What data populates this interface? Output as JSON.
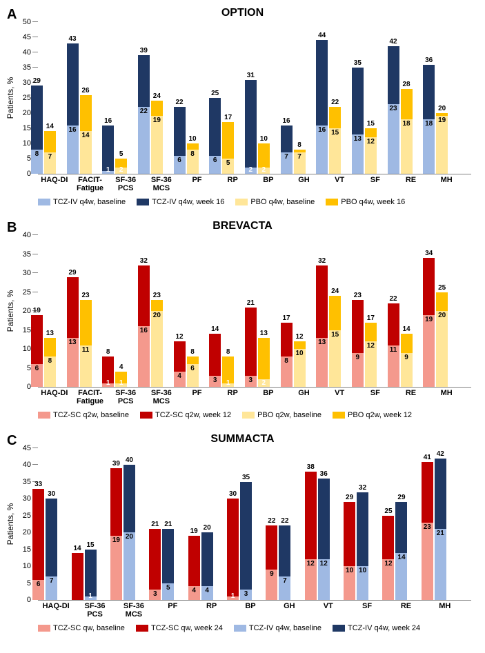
{
  "panels": [
    {
      "letter": "A",
      "title": "OPTION",
      "ylabel": "Patients, %",
      "ylim": [
        0,
        50
      ],
      "ytick_step": 5,
      "colors": {
        "s1_base": "#9fb9e3",
        "s1_week": "#1f3864",
        "s2_base": "#ffe699",
        "s2_week": "#ffc000"
      },
      "legend": [
        {
          "color": "#9fb9e3",
          "label": "TCZ-IV q4w, baseline"
        },
        {
          "color": "#1f3864",
          "label": "TCZ-IV q4w, week 16"
        },
        {
          "color": "#ffe699",
          "label": "PBO q4w, baseline"
        },
        {
          "color": "#ffc000",
          "label": "PBO q4w, week 16"
        }
      ],
      "categories": [
        {
          "name": "HAQ-DI",
          "s1b": 8,
          "s1w": 29,
          "s2b": 7,
          "s2w": 14
        },
        {
          "name": "FACIT-\nFatigue",
          "s1b": 16,
          "s1w": 43,
          "s2b": 14,
          "s2w": 26
        },
        {
          "name": "SF-36\nPCS",
          "s1b": 1,
          "s1w": 16,
          "s2b": 2,
          "s2w": 5
        },
        {
          "name": "SF-36\nMCS",
          "s1b": 22,
          "s1w": 39,
          "s2b": 19,
          "s2w": 24
        },
        {
          "name": "PF",
          "s1b": 6,
          "s1w": 22,
          "s2b": 8,
          "s2w": 10
        },
        {
          "name": "RP",
          "s1b": 6,
          "s1w": 25,
          "s2b": 5,
          "s2w": 17
        },
        {
          "name": "BP",
          "s1b": 2,
          "s1w": 31,
          "s2b": 2,
          "s2w": 10
        },
        {
          "name": "GH",
          "s1b": 7,
          "s1w": 16,
          "s2b": 7,
          "s2w": 8
        },
        {
          "name": "VT",
          "s1b": 16,
          "s1w": 44,
          "s2b": 15,
          "s2w": 22
        },
        {
          "name": "SF",
          "s1b": 13,
          "s1w": 35,
          "s2b": 12,
          "s2w": 15
        },
        {
          "name": "RE",
          "s1b": 23,
          "s1w": 42,
          "s2b": 18,
          "s2w": 28
        },
        {
          "name": "MH",
          "s1b": 18,
          "s1w": 36,
          "s2b": 19,
          "s2w": 20
        }
      ]
    },
    {
      "letter": "B",
      "title": "BREVACTA",
      "ylabel": "Patients, %",
      "ylim": [
        0,
        40
      ],
      "ytick_step": 5,
      "colors": {
        "s1_base": "#f4998d",
        "s1_week": "#c00000",
        "s2_base": "#ffe699",
        "s2_week": "#ffc000"
      },
      "legend": [
        {
          "color": "#f4998d",
          "label": "TCZ-SC q2w, baseline"
        },
        {
          "color": "#c00000",
          "label": "TCZ-SC q2w, week 12"
        },
        {
          "color": "#ffe699",
          "label": "PBO q2w, baseline"
        },
        {
          "color": "#ffc000",
          "label": "PBO q2w, week 12"
        }
      ],
      "categories": [
        {
          "name": "HAQ-DI",
          "s1b": 6,
          "s1w": 19,
          "s2b": 8,
          "s2w": 13
        },
        {
          "name": "FACIT-\nFatigue",
          "s1b": 13,
          "s1w": 29,
          "s2b": 11,
          "s2w": 23
        },
        {
          "name": "SF-36\nPCS",
          "s1b": 1,
          "s1w": 8,
          "s2b": 1,
          "s2w": 4
        },
        {
          "name": "SF-36\nMCS",
          "s1b": 16,
          "s1w": 32,
          "s2b": 20,
          "s2w": 23
        },
        {
          "name": "PF",
          "s1b": 4,
          "s1w": 12,
          "s2b": 6,
          "s2w": 8
        },
        {
          "name": "RP",
          "s1b": 3,
          "s1w": 14,
          "s2b": 1,
          "s2w": 8
        },
        {
          "name": "BP",
          "s1b": 3,
          "s1w": 21,
          "s2b": 2,
          "s2w": 13
        },
        {
          "name": "GH",
          "s1b": 8,
          "s1w": 17,
          "s2b": 10,
          "s2w": 12
        },
        {
          "name": "VT",
          "s1b": 13,
          "s1w": 32,
          "s2b": 15,
          "s2w": 24
        },
        {
          "name": "SF",
          "s1b": 9,
          "s1w": 23,
          "s2b": 12,
          "s2w": 17
        },
        {
          "name": "RE",
          "s1b": 11,
          "s1w": 22,
          "s2b": 9,
          "s2w": 14
        },
        {
          "name": "MH",
          "s1b": 19,
          "s1w": 34,
          "s2b": 20,
          "s2w": 25
        }
      ]
    },
    {
      "letter": "C",
      "title": "SUMMACTA",
      "ylabel": "Patients, %",
      "ylim": [
        0,
        45
      ],
      "ytick_step": 5,
      "colors": {
        "s1_base": "#f4998d",
        "s1_week": "#c00000",
        "s2_base": "#9fb9e3",
        "s2_week": "#1f3864"
      },
      "legend": [
        {
          "color": "#f4998d",
          "label": "TCZ-SC qw, baseline"
        },
        {
          "color": "#c00000",
          "label": "TCZ-SC qw, week 24"
        },
        {
          "color": "#9fb9e3",
          "label": "TCZ-IV q4w, baseline"
        },
        {
          "color": "#1f3864",
          "label": "TCZ-IV q4w, week 24"
        }
      ],
      "categories": [
        {
          "name": "HAQ-DI",
          "s1b": 6,
          "s1w": 33,
          "s2b": 7,
          "s2w": 30
        },
        {
          "name": "SF-36\nPCS",
          "s1b": 0,
          "s1w": 14,
          "s2b": 1,
          "s2w": 15
        },
        {
          "name": "SF-36\nMCS",
          "s1b": 19,
          "s1w": 39,
          "s2b": 20,
          "s2w": 40
        },
        {
          "name": "PF",
          "s1b": 3,
          "s1w": 21,
          "s2b": 5,
          "s2w": 21
        },
        {
          "name": "RP",
          "s1b": 4,
          "s1w": 19,
          "s2b": 4,
          "s2w": 20
        },
        {
          "name": "BP",
          "s1b": 1,
          "s1w": 30,
          "s2b": 3,
          "s2w": 35
        },
        {
          "name": "GH",
          "s1b": 9,
          "s1w": 22,
          "s2b": 7,
          "s2w": 22
        },
        {
          "name": "VT",
          "s1b": 12,
          "s1w": 38,
          "s2b": 12,
          "s2w": 36
        },
        {
          "name": "SF",
          "s1b": 10,
          "s1w": 29,
          "s2b": 10,
          "s2w": 32
        },
        {
          "name": "RE",
          "s1b": 12,
          "s1w": 25,
          "s2b": 14,
          "s2w": 29
        },
        {
          "name": "MH",
          "s1b": 23,
          "s1w": 41,
          "s2b": 21,
          "s2w": 42
        }
      ]
    }
  ]
}
